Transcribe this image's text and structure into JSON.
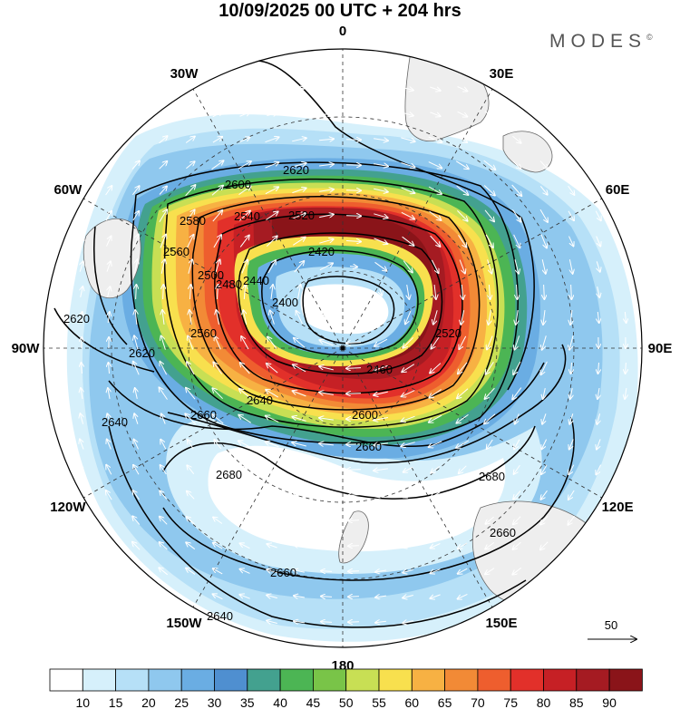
{
  "title": "10/09/2025  00 UTC  + 204 hrs",
  "logo": "MODES",
  "logo_mark": "©",
  "longitude_labels": [
    {
      "text": "0",
      "deg": 0
    },
    {
      "text": "30E",
      "deg": 30
    },
    {
      "text": "60E",
      "deg": 60
    },
    {
      "text": "90E",
      "deg": 90
    },
    {
      "text": "120E",
      "deg": 120
    },
    {
      "text": "150E",
      "deg": 150
    },
    {
      "text": "180",
      "deg": 180
    },
    {
      "text": "150W",
      "deg": 210
    },
    {
      "text": "120W",
      "deg": 240
    },
    {
      "text": "90W",
      "deg": 270
    },
    {
      "text": "60W",
      "deg": 300
    },
    {
      "text": "30W",
      "deg": 330
    }
  ],
  "contour_labels": [
    "2620",
    "2600",
    "2580",
    "2560",
    "2540",
    "2520",
    "2500",
    "2480",
    "2460",
    "2440",
    "2420",
    "2400",
    "2620",
    "2620",
    "2640",
    "2640",
    "2660",
    "2660",
    "2680",
    "2680",
    "2660",
    "2660",
    "2640",
    "2600",
    "2560",
    "2520"
  ],
  "wind_reference": {
    "label": "50"
  },
  "colorbar": {
    "ticks": [
      "10",
      "15",
      "20",
      "25",
      "30",
      "35",
      "40",
      "45",
      "50",
      "55",
      "60",
      "65",
      "70",
      "75",
      "80",
      "85",
      "90"
    ],
    "colors": [
      "#ffffff",
      "#d6f0fb",
      "#b6e0f7",
      "#8fc8ee",
      "#6aade3",
      "#4f8fd0",
      "#43a18f",
      "#4cb554",
      "#79c448",
      "#c8df54",
      "#f8e04e",
      "#f7b143",
      "#f28a36",
      "#ee5e2e",
      "#e2302a",
      "#c62025",
      "#a51b22",
      "#8a1419"
    ]
  },
  "colors": {
    "land": "#eeeeee",
    "coast": "#666666",
    "contour": "#000000",
    "grid": "#333333"
  }
}
